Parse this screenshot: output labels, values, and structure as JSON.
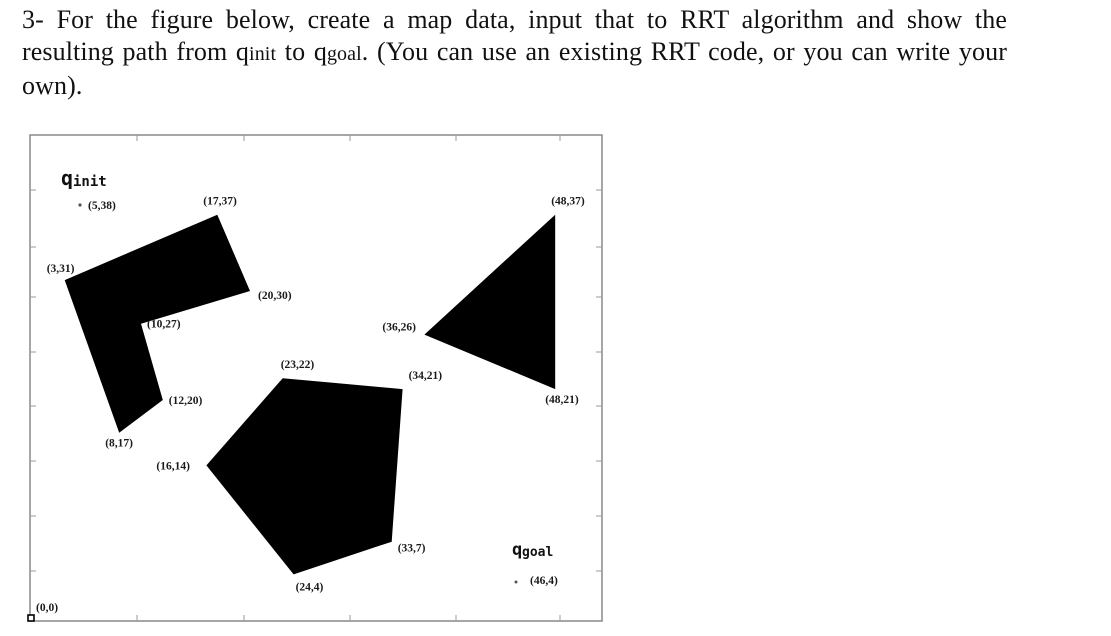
{
  "question": {
    "line1": "3- For the figure below, create a map data, input that to RRT algorithm and show the",
    "line2_a": "resu",
    "line2_b": "lting path from q",
    "line2_init": "init",
    "line2_c": " to q",
    "line2_goal": "goal",
    "line2_d": ". (You can use an existing RRT code, or you can write your",
    "line3": "own)."
  },
  "figure": {
    "colors": {
      "obstacle": "#000000",
      "frame": "#888888",
      "background": "#ffffff"
    },
    "qinit": {
      "symbol": "q",
      "subscript": "init",
      "coord_label": "(5,38)"
    },
    "qgoal": {
      "symbol": "q",
      "subscript": "goal",
      "coord_label": "(46,4)"
    },
    "origin_label": "(0,0)",
    "obstacles": [
      {
        "name": "l-shape",
        "vertices": [
          [
            3,
            31
          ],
          [
            17,
            37
          ],
          [
            20,
            30
          ],
          [
            10,
            27
          ],
          [
            12,
            20
          ],
          [
            8,
            17
          ]
        ],
        "labels": [
          "(3,31)",
          "(17,37)",
          "(20,30)",
          "(10,27)",
          "(12,20)",
          "(8,17)"
        ]
      },
      {
        "name": "pentagon",
        "vertices": [
          [
            23,
            22
          ],
          [
            34,
            21
          ],
          [
            33,
            7
          ],
          [
            24,
            4
          ],
          [
            16,
            14
          ]
        ],
        "labels": [
          "(23,22)",
          "(34,21)",
          "(33,7)",
          "(24,4)",
          "(16,14)"
        ]
      },
      {
        "name": "triangle",
        "vertices": [
          [
            36,
            26
          ],
          [
            48,
            37
          ],
          [
            48,
            21
          ]
        ],
        "labels": [
          "(36,26)",
          "(48,37)",
          "(48,21)"
        ]
      }
    ]
  }
}
